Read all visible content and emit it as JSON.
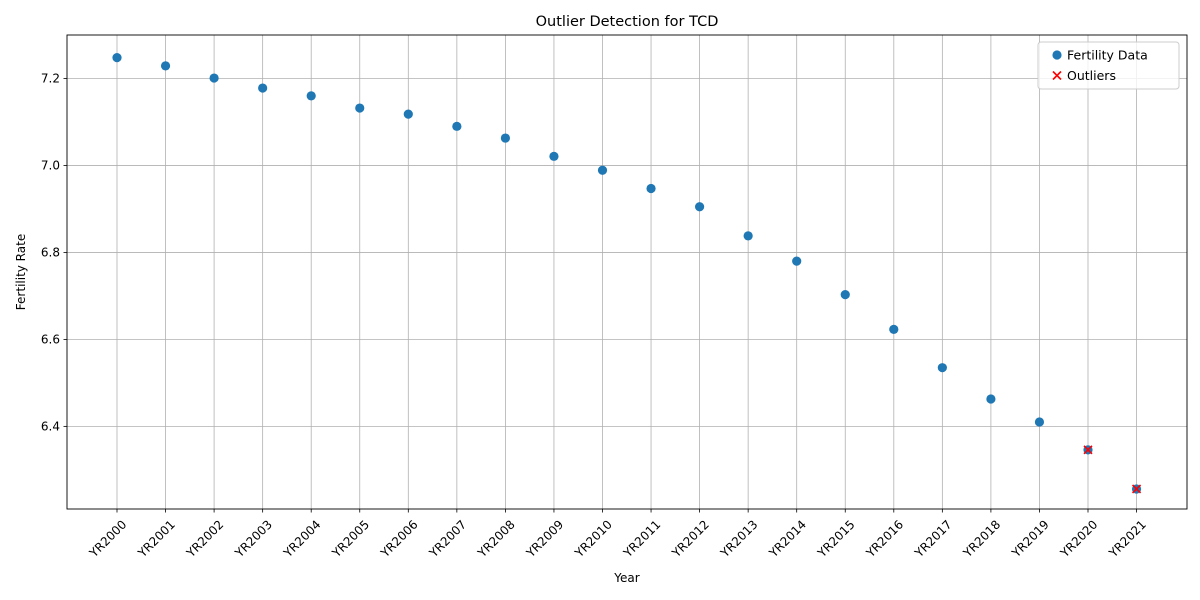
{
  "chart_data": {
    "type": "scatter",
    "title": "Outlier Detection for TCD",
    "xlabel": "Year",
    "ylabel": "Fertility Rate",
    "categories": [
      "YR2000",
      "YR2001",
      "YR2002",
      "YR2003",
      "YR2004",
      "YR2005",
      "YR2006",
      "YR2007",
      "YR2008",
      "YR2009",
      "YR2010",
      "YR2011",
      "YR2012",
      "YR2013",
      "YR2014",
      "YR2015",
      "YR2016",
      "YR2017",
      "YR2018",
      "YR2019",
      "YR2020",
      "YR2021"
    ],
    "ylim": [
      6.21,
      7.3
    ],
    "yticks": [
      6.4,
      6.6,
      6.8,
      7.0,
      7.2
    ],
    "ytick_labels": [
      "6.4",
      "6.6",
      "6.8",
      "7.0",
      "7.2"
    ],
    "grid": true,
    "legend_position": "top-right",
    "series": [
      {
        "name": "Fertility Data",
        "marker": "circle",
        "color": "#1f77b4",
        "values": [
          7.248,
          7.229,
          7.201,
          7.178,
          7.16,
          7.132,
          7.118,
          7.09,
          7.063,
          7.021,
          6.989,
          6.947,
          6.905,
          6.838,
          6.78,
          6.703,
          6.623,
          6.535,
          6.463,
          6.41,
          6.346,
          6.256
        ]
      },
      {
        "name": "Outliers",
        "marker": "x",
        "color": "#ff0000",
        "categories": [
          "YR2020",
          "YR2021"
        ],
        "values": [
          6.346,
          6.256
        ]
      }
    ]
  }
}
